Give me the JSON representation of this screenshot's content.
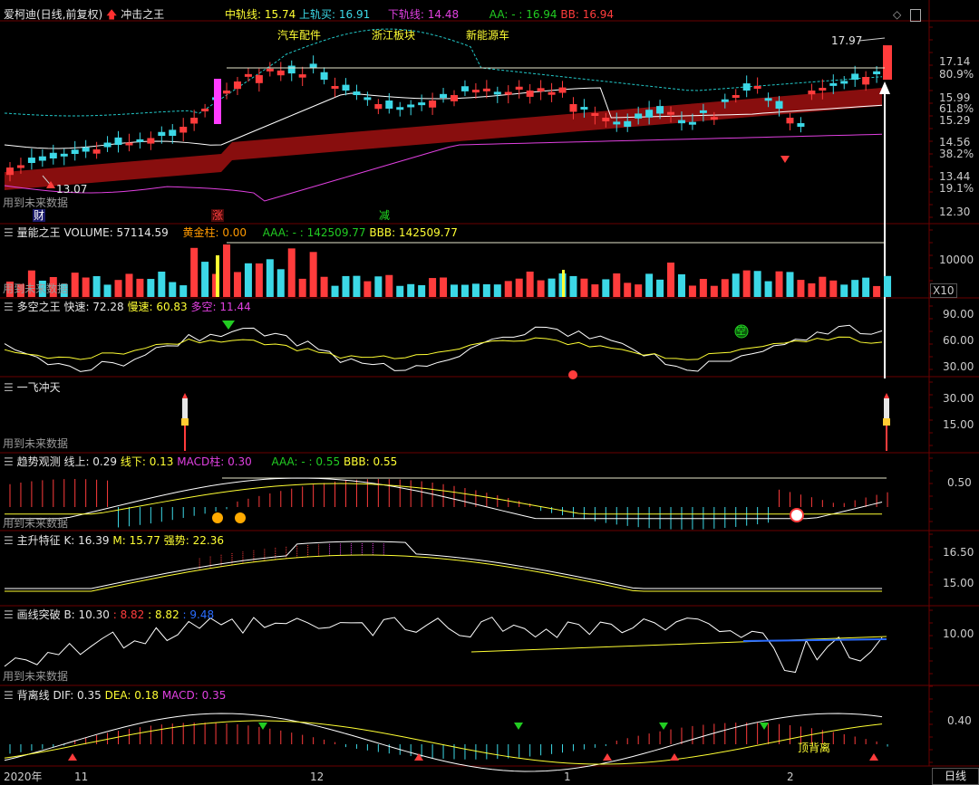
{
  "colors": {
    "up": "#ff3c3c",
    "down": "#3cd8e6",
    "white": "#ffffff",
    "yellow": "#ffff33",
    "magenta": "#e040e0",
    "gray": "#9aa0a6",
    "panel_line": "#3b0000",
    "band": "#a01010",
    "ma_cyan": "#22c8c8",
    "green": "#22cc22",
    "blue": "#2a6cff"
  },
  "header": {
    "stock_name": "爱柯迪(日线,前复权)",
    "indicator_name": "冲击之王",
    "mid_label": "中轨线: 15.74",
    "upper_label": "上轨买: 16.91",
    "lower_label": "下轨线: 14.48",
    "aa_label": "AA: - : 16.94",
    "bb_label": "BB: 16.94"
  },
  "concepts": [
    "汽车配件",
    "浙江板块",
    "新能源车"
  ],
  "main": {
    "future_note": "用到未来数据",
    "low_label": "13.07",
    "high_label": "17.97",
    "tag_cai": "财",
    "tag_zhang": "涨",
    "tag_jian": "减",
    "price_axis": [
      "17.14",
      "80.9%",
      "15.99",
      "61.8%",
      "15.29",
      "14.56",
      "38.2%",
      "13.44",
      "19.1%",
      "12.30"
    ]
  },
  "volume": {
    "title": "量能之王",
    "values_text": "VOLUME: 57114.59",
    "gold_text": "黄金柱: 0.00",
    "aa_text": "AAA: - : 142509.77",
    "bbb_text": "BBB: 142509.77",
    "axis": [
      "10000"
    ],
    "unit": "X10",
    "future_note": "用到未来数据"
  },
  "duokong": {
    "title": "多空之王",
    "fast": "快速: 72.28",
    "slow": "慢速: 60.83",
    "diff": "多空: 11.44",
    "axis": [
      "90.00",
      "60.00",
      "30.00"
    ],
    "tag_kong": "空"
  },
  "yifei": {
    "title": "一飞冲天",
    "axis": [
      "30.00",
      "15.00"
    ],
    "future_note": "用到未来数据"
  },
  "trend": {
    "title": "趋势观测",
    "up": "线上: 0.29",
    "down": "线下: 0.13",
    "macd": "MACD柱: 0.30",
    "aaa": "AAA: - : 0.55",
    "bbb": "BBB: 0.55",
    "axis": [
      "0.50"
    ],
    "future_note": "用到未来数据"
  },
  "zhusheng": {
    "title": "主升特征",
    "k": "K: 16.39",
    "m": "M: 15.77",
    "strong": "强势: 22.36",
    "axis": [
      "16.50",
      "15.00"
    ]
  },
  "huaxian": {
    "title": "画线突破",
    "b": "B: 10.30",
    "v1": ": 8.82",
    "v2": ": 8.82",
    "v3": ": 9.48",
    "axis": [
      "10.00"
    ],
    "future_note": "用到未来数据"
  },
  "beili": {
    "title": "背离线",
    "dif": "DIF: 0.35",
    "dea": "DEA: 0.18",
    "macd": "MACD: 0.35",
    "axis": [
      "0.40"
    ],
    "tag_top": "顶背离"
  },
  "time_axis": [
    "2020年",
    "11",
    "12",
    "1",
    "2"
  ],
  "period_button": "日线"
}
